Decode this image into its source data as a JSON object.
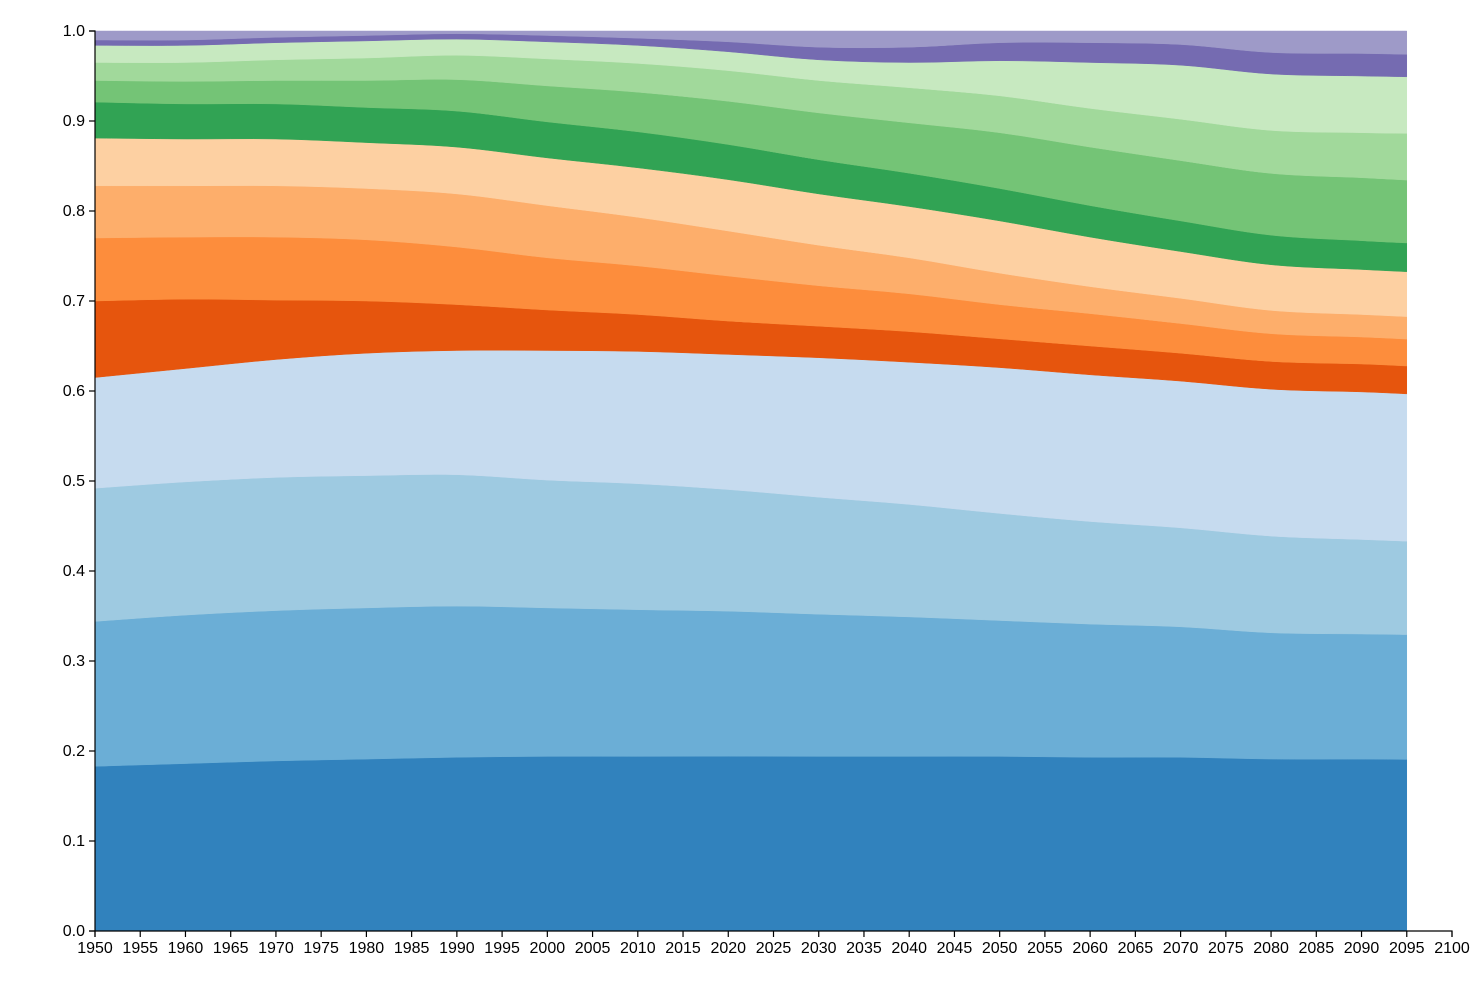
{
  "chart_data": {
    "type": "area",
    "stacked": true,
    "normalized": true,
    "title": "",
    "xlabel": "",
    "ylabel": "",
    "ylim": [
      0,
      1
    ],
    "xlim": [
      1950,
      2100
    ],
    "grid": false,
    "legend": "none",
    "x_ticks": [
      1950,
      1955,
      1960,
      1965,
      1970,
      1975,
      1980,
      1985,
      1990,
      1995,
      2000,
      2005,
      2010,
      2015,
      2020,
      2025,
      2030,
      2035,
      2040,
      2045,
      2050,
      2055,
      2060,
      2065,
      2070,
      2075,
      2080,
      2085,
      2090,
      2095,
      2100
    ],
    "x_tick_labels": [
      "1950",
      "1955",
      "1960",
      "1965",
      "1970",
      "1975",
      "1980",
      "1985",
      "1990",
      "1995",
      "2000",
      "2005",
      "2010",
      "2015",
      "2020",
      "2025",
      "2030",
      "2035",
      "2040",
      "2045",
      "2050",
      "2055",
      "2060",
      "2065",
      "2070",
      "2075",
      "2080",
      "2085",
      "2090",
      "2095",
      "2100"
    ],
    "y_ticks": [
      0.0,
      0.1,
      0.2,
      0.3,
      0.4,
      0.5,
      0.6,
      0.7,
      0.8,
      0.9,
      1.0
    ],
    "y_tick_labels": [
      "0.0",
      "0.1",
      "0.2",
      "0.3",
      "0.4",
      "0.5",
      "0.6",
      "0.7",
      "0.8",
      "0.9",
      "1.0"
    ],
    "x": [
      1950,
      1960,
      1970,
      1980,
      1990,
      2000,
      2010,
      2020,
      2030,
      2040,
      2050,
      2060,
      2070,
      2080,
      2090,
      2095
    ],
    "series": [
      {
        "color": "#3182bd",
        "values": [
          0.183,
          0.186,
          0.189,
          0.191,
          0.193,
          0.194,
          0.194,
          0.194,
          0.194,
          0.194,
          0.194,
          0.193,
          0.193,
          0.192,
          0.191,
          0.191
        ]
      },
      {
        "color": "#6baed6",
        "values": [
          0.161,
          0.165,
          0.167,
          0.168,
          0.168,
          0.165,
          0.163,
          0.161,
          0.158,
          0.155,
          0.151,
          0.148,
          0.145,
          0.141,
          0.139,
          0.139
        ]
      },
      {
        "color": "#9ecae1",
        "values": [
          0.148,
          0.148,
          0.148,
          0.147,
          0.146,
          0.142,
          0.14,
          0.135,
          0.13,
          0.125,
          0.119,
          0.114,
          0.11,
          0.108,
          0.105,
          0.104
        ]
      },
      {
        "color": "#c6dbef",
        "values": [
          0.123,
          0.126,
          0.131,
          0.136,
          0.138,
          0.144,
          0.147,
          0.15,
          0.155,
          0.158,
          0.162,
          0.163,
          0.163,
          0.164,
          0.164,
          0.164
        ]
      },
      {
        "color": "#e6550d",
        "values": [
          0.085,
          0.077,
          0.066,
          0.058,
          0.051,
          0.045,
          0.041,
          0.037,
          0.035,
          0.034,
          0.032,
          0.032,
          0.031,
          0.031,
          0.031,
          0.031
        ]
      },
      {
        "color": "#fd8d3c",
        "values": [
          0.07,
          0.069,
          0.07,
          0.068,
          0.064,
          0.058,
          0.054,
          0.05,
          0.045,
          0.042,
          0.038,
          0.036,
          0.033,
          0.031,
          0.03,
          0.03
        ]
      },
      {
        "color": "#fdae6b",
        "values": [
          0.058,
          0.057,
          0.057,
          0.057,
          0.059,
          0.058,
          0.054,
          0.05,
          0.045,
          0.04,
          0.035,
          0.03,
          0.028,
          0.026,
          0.025,
          0.025
        ]
      },
      {
        "color": "#fdd0a2",
        "values": [
          0.053,
          0.052,
          0.052,
          0.051,
          0.052,
          0.053,
          0.055,
          0.057,
          0.057,
          0.057,
          0.058,
          0.055,
          0.052,
          0.051,
          0.05,
          0.05
        ]
      },
      {
        "color": "#31a354",
        "values": [
          0.04,
          0.039,
          0.039,
          0.039,
          0.04,
          0.04,
          0.04,
          0.039,
          0.038,
          0.037,
          0.036,
          0.035,
          0.034,
          0.033,
          0.032,
          0.032
        ]
      },
      {
        "color": "#74c476",
        "values": [
          0.024,
          0.025,
          0.026,
          0.03,
          0.035,
          0.04,
          0.044,
          0.048,
          0.052,
          0.056,
          0.062,
          0.065,
          0.067,
          0.069,
          0.07,
          0.07
        ]
      },
      {
        "color": "#a1d99b",
        "values": [
          0.02,
          0.021,
          0.023,
          0.025,
          0.027,
          0.03,
          0.032,
          0.034,
          0.036,
          0.039,
          0.041,
          0.043,
          0.046,
          0.048,
          0.05,
          0.052
        ]
      },
      {
        "color": "#c7e9c0",
        "values": [
          0.019,
          0.019,
          0.019,
          0.019,
          0.018,
          0.019,
          0.02,
          0.021,
          0.023,
          0.028,
          0.039,
          0.051,
          0.06,
          0.063,
          0.063,
          0.063
        ]
      },
      {
        "color": "#756bb1",
        "values": [
          0.006,
          0.006,
          0.006,
          0.006,
          0.006,
          0.007,
          0.008,
          0.011,
          0.014,
          0.017,
          0.02,
          0.022,
          0.023,
          0.024,
          0.025,
          0.025
        ]
      },
      {
        "color": "#9e9ac8",
        "values": [
          0.01,
          0.01,
          0.007,
          0.005,
          0.003,
          0.005,
          0.008,
          0.012,
          0.018,
          0.018,
          0.013,
          0.013,
          0.015,
          0.024,
          0.025,
          0.026
        ]
      }
    ]
  }
}
